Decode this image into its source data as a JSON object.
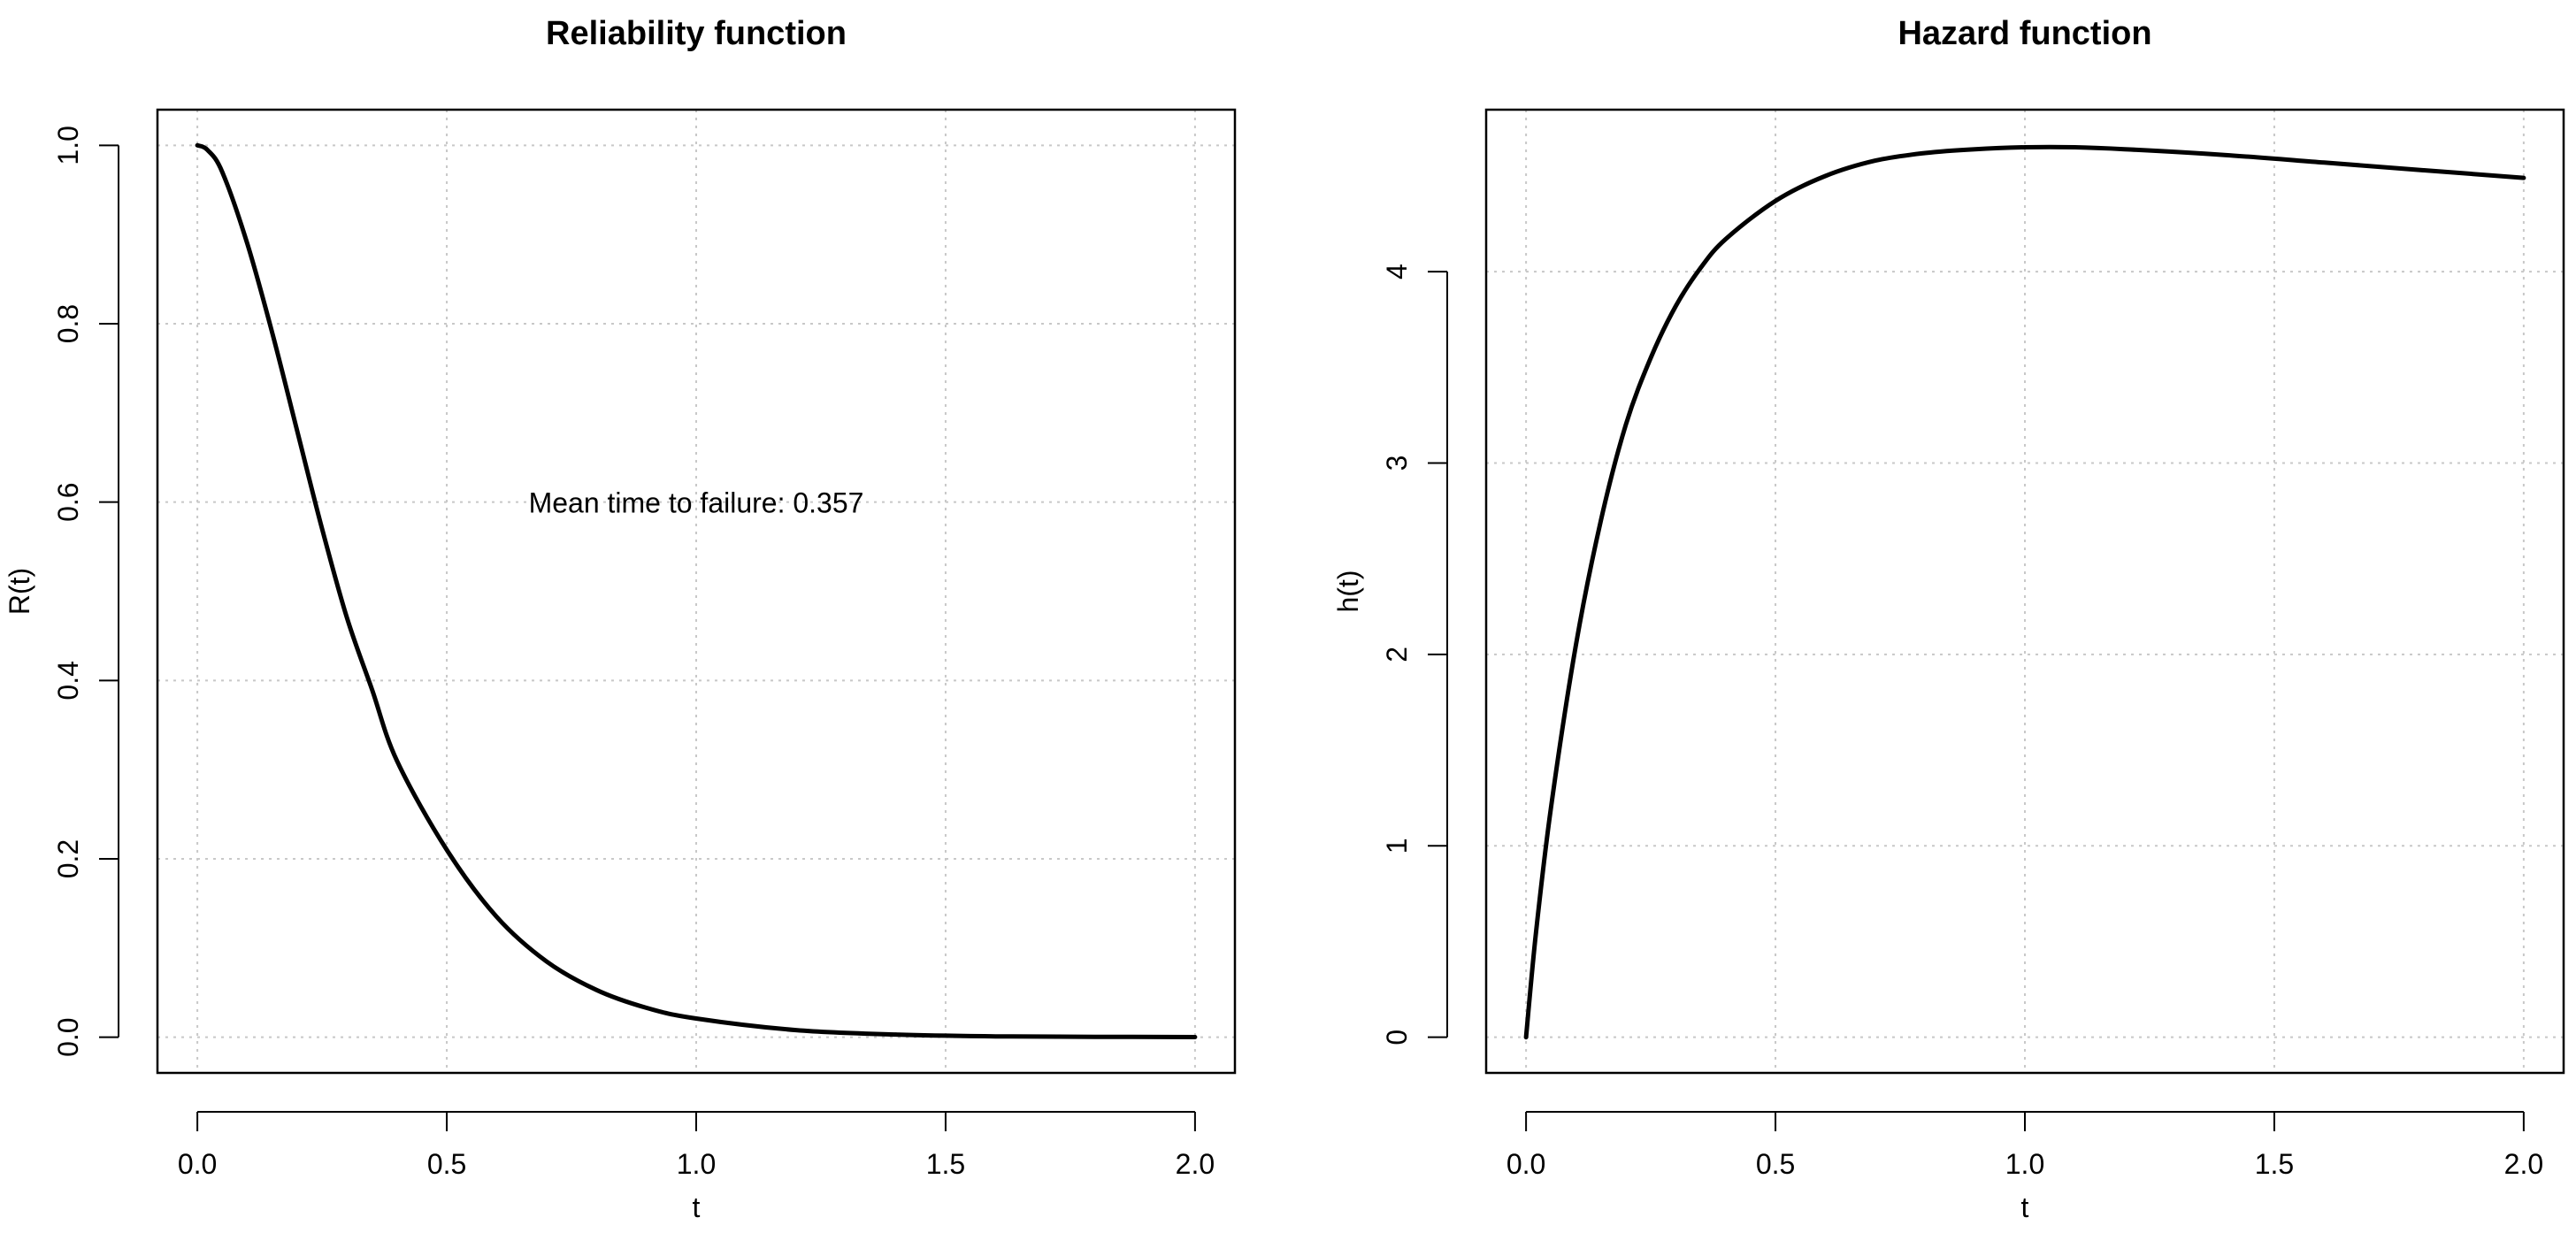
{
  "chart_data": [
    {
      "type": "line",
      "title": "Reliability function",
      "xlabel": "t",
      "ylabel": "R(t)",
      "xlim": [
        0,
        2
      ],
      "ylim": [
        0,
        1
      ],
      "x_ticks": [
        "0.0",
        "0.5",
        "1.0",
        "1.5",
        "2.0"
      ],
      "x_tick_values": [
        0,
        0.5,
        1,
        1.5,
        2
      ],
      "y_ticks": [
        "0.0",
        "0.2",
        "0.4",
        "0.6",
        "0.8",
        "1.0"
      ],
      "y_tick_values": [
        0,
        0.2,
        0.4,
        0.6,
        0.8,
        1.0
      ],
      "grid": true,
      "annotation": "Mean time to failure:  0.357",
      "series": [
        {
          "x": [
            0,
            0.02,
            0.05,
            0.1,
            0.15,
            0.2,
            0.25,
            0.3,
            0.35,
            0.4,
            0.5,
            0.6,
            0.7,
            0.8,
            0.9,
            1.0,
            1.2,
            1.4,
            1.6,
            1.8,
            2.0
          ],
          "y": [
            1.0,
            0.995,
            0.97,
            0.89,
            0.79,
            0.68,
            0.57,
            0.47,
            0.39,
            0.31,
            0.21,
            0.135,
            0.085,
            0.053,
            0.033,
            0.021,
            0.008,
            0.003,
            0.001,
            0.0005,
            0.0002
          ]
        }
      ]
    },
    {
      "type": "line",
      "title": "Hazard function",
      "xlabel": "t",
      "ylabel": "h(t)",
      "xlim": [
        0,
        2
      ],
      "ylim": [
        0,
        4.66
      ],
      "x_ticks": [
        "0.0",
        "0.5",
        "1.0",
        "1.5",
        "2.0"
      ],
      "x_tick_values": [
        0,
        0.5,
        1,
        1.5,
        2
      ],
      "y_ticks": [
        "0",
        "1",
        "2",
        "3",
        "4"
      ],
      "y_tick_values": [
        0,
        1,
        2,
        3,
        4
      ],
      "grid": true,
      "series": [
        {
          "x": [
            0,
            0.02,
            0.05,
            0.1,
            0.15,
            0.2,
            0.25,
            0.3,
            0.35,
            0.4,
            0.5,
            0.6,
            0.7,
            0.8,
            0.9,
            1.0,
            1.1,
            1.2,
            1.4,
            1.6,
            1.8,
            2.0
          ],
          "y": [
            0,
            0.55,
            1.2,
            2.05,
            2.7,
            3.2,
            3.55,
            3.82,
            4.02,
            4.17,
            4.37,
            4.5,
            4.58,
            4.62,
            4.64,
            4.65,
            4.65,
            4.64,
            4.61,
            4.57,
            4.53,
            4.49
          ]
        }
      ]
    }
  ]
}
